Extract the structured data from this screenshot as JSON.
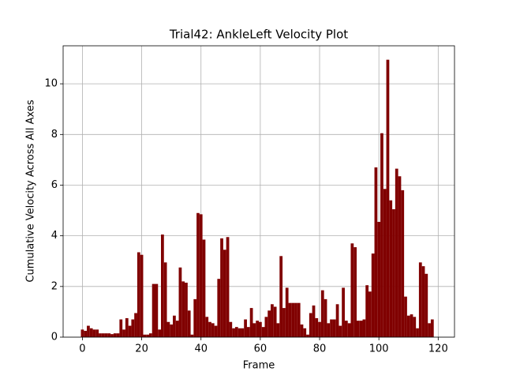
{
  "chart_data": {
    "type": "bar",
    "title": "Trial42: AnkleLeft Velocity Plot",
    "xlabel": "Frame",
    "ylabel": "Cumulative Velocity Across All Axes",
    "x": [
      0,
      1,
      2,
      3,
      4,
      5,
      6,
      7,
      8,
      9,
      10,
      11,
      12,
      13,
      14,
      15,
      16,
      17,
      18,
      19,
      20,
      21,
      22,
      23,
      24,
      25,
      26,
      27,
      28,
      29,
      30,
      31,
      32,
      33,
      34,
      35,
      36,
      37,
      38,
      39,
      40,
      41,
      42,
      43,
      44,
      45,
      46,
      47,
      48,
      49,
      50,
      51,
      52,
      53,
      54,
      55,
      56,
      57,
      58,
      59,
      60,
      61,
      62,
      63,
      64,
      65,
      66,
      67,
      68,
      69,
      70,
      71,
      72,
      73,
      74,
      75,
      76,
      77,
      78,
      79,
      80,
      81,
      82,
      83,
      84,
      85,
      86,
      87,
      88,
      89,
      90,
      91,
      92,
      93,
      94,
      95,
      96,
      97,
      98,
      99,
      100,
      101,
      102,
      103,
      104,
      105,
      106,
      107,
      108,
      109,
      110,
      111,
      112,
      113,
      114,
      115,
      116,
      117,
      118
    ],
    "values": [
      0.3,
      0.25,
      0.45,
      0.35,
      0.3,
      0.3,
      0.15,
      0.15,
      0.15,
      0.15,
      0.12,
      0.15,
      0.15,
      0.7,
      0.3,
      0.75,
      0.45,
      0.7,
      0.95,
      3.35,
      3.25,
      0.1,
      0.1,
      0.15,
      2.1,
      2.1,
      0.3,
      4.05,
      2.95,
      0.6,
      0.5,
      0.85,
      0.65,
      2.75,
      2.2,
      2.15,
      1.05,
      0.1,
      1.5,
      4.9,
      4.85,
      3.85,
      0.8,
      0.6,
      0.55,
      0.45,
      2.3,
      3.9,
      3.45,
      3.95,
      0.6,
      0.35,
      0.4,
      0.35,
      0.35,
      0.7,
      0.4,
      1.15,
      0.55,
      0.65,
      0.6,
      0.4,
      0.8,
      1.05,
      1.3,
      1.2,
      0.55,
      3.2,
      1.15,
      1.95,
      1.35,
      1.35,
      1.35,
      1.35,
      0.5,
      0.35,
      0.1,
      0.95,
      1.25,
      0.75,
      0.6,
      1.85,
      1.5,
      0.55,
      0.7,
      0.7,
      1.3,
      0.45,
      1.95,
      0.65,
      0.55,
      3.7,
      3.55,
      0.65,
      0.65,
      0.7,
      2.05,
      1.8,
      3.3,
      6.7,
      4.55,
      8.05,
      5.85,
      10.95,
      5.4,
      5.05,
      6.65,
      6.35,
      5.8,
      1.6,
      0.85,
      0.9,
      0.8,
      0.35,
      2.95,
      2.8,
      2.5,
      0.55,
      0.7
    ],
    "color": "#800000",
    "xlim": [
      -6.5,
      125.5
    ],
    "ylim": [
      0,
      11.5
    ],
    "xticks": [
      0,
      20,
      40,
      60,
      80,
      100,
      120
    ],
    "yticks": [
      0,
      2,
      4,
      6,
      8,
      10
    ],
    "grid": true
  }
}
